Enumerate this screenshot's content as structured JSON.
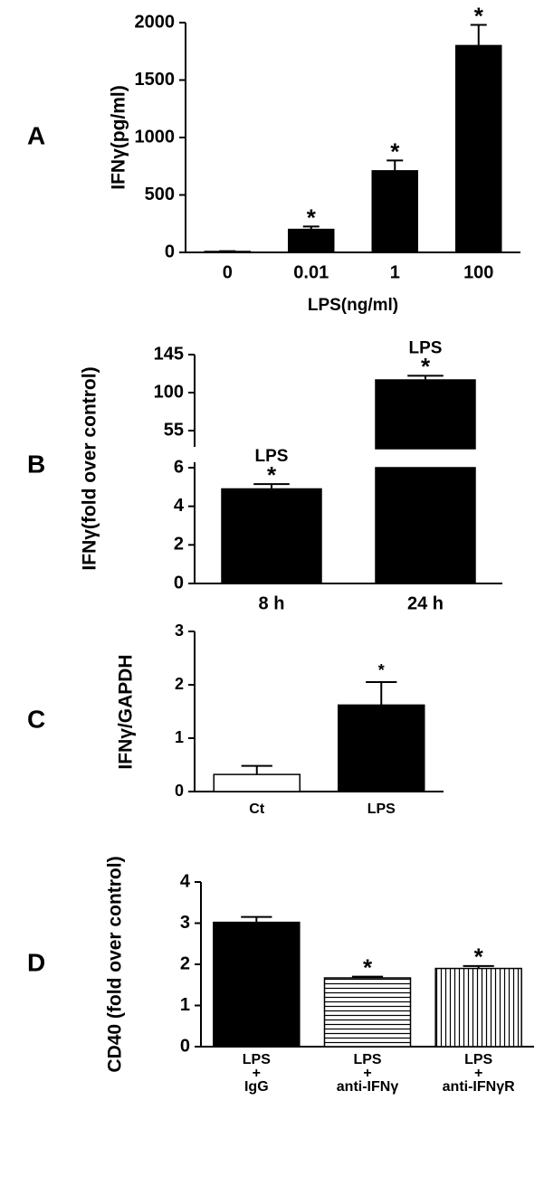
{
  "chart_data": [
    {
      "type": "bar",
      "panel": "A",
      "y_label": "IFNγ(pg/ml)",
      "x_label": "LPS(ng/ml)",
      "categories": [
        "0",
        "0.01",
        "1",
        "100"
      ],
      "values": [
        8,
        200,
        710,
        1800
      ],
      "errors": [
        3,
        25,
        90,
        180
      ],
      "stars": [
        null,
        "*",
        "*",
        "*"
      ],
      "colors": [
        "#000000",
        "#000000",
        "#000000",
        "#000000"
      ],
      "ylim": [
        0,
        2000
      ],
      "yticks": [
        0,
        500,
        1000,
        1500,
        2000
      ]
    },
    {
      "type": "bar",
      "panel": "B",
      "y_label": "IFNγ(fold over control)",
      "categories": [
        "8 h",
        "24 h"
      ],
      "values": [
        4.9,
        115
      ],
      "errors": [
        0.25,
        5
      ],
      "annotations": [
        "LPS",
        "LPS"
      ],
      "stars": [
        "*",
        "*"
      ],
      "colors": [
        "#000000",
        "#000000"
      ],
      "ylim": [
        0,
        145
      ],
      "break": [
        6,
        40
      ],
      "yticks": [
        0,
        2,
        4,
        6,
        55,
        100,
        145
      ]
    },
    {
      "type": "bar",
      "panel": "C",
      "y_label": "IFNγ/GAPDH",
      "categories": [
        "Ct",
        "LPS"
      ],
      "values": [
        0.32,
        1.62
      ],
      "errors": [
        0.16,
        0.43
      ],
      "stars": [
        null,
        "*"
      ],
      "colors": [
        "#ffffff",
        "#000000"
      ],
      "ylim": [
        0,
        3
      ],
      "yticks": [
        0,
        1,
        2,
        3
      ]
    },
    {
      "type": "bar",
      "panel": "D",
      "y_label": "CD40 (fold over control)",
      "categories": [
        [
          "LPS",
          "+",
          "IgG"
        ],
        [
          "LPS",
          "+",
          "anti-IFNγ"
        ],
        [
          "LPS",
          "+",
          "anti-IFNγR"
        ]
      ],
      "values": [
        3.02,
        1.67,
        1.9
      ],
      "errors": [
        0.13,
        0.03,
        0.06
      ],
      "stars": [
        null,
        "*",
        "*"
      ],
      "patterns": [
        "solid",
        "horizontal",
        "vertical"
      ],
      "colors": [
        "#000000",
        "#000000",
        "#000000"
      ],
      "ylim": [
        0,
        4
      ],
      "yticks": [
        0,
        1,
        2,
        3,
        4
      ]
    }
  ]
}
